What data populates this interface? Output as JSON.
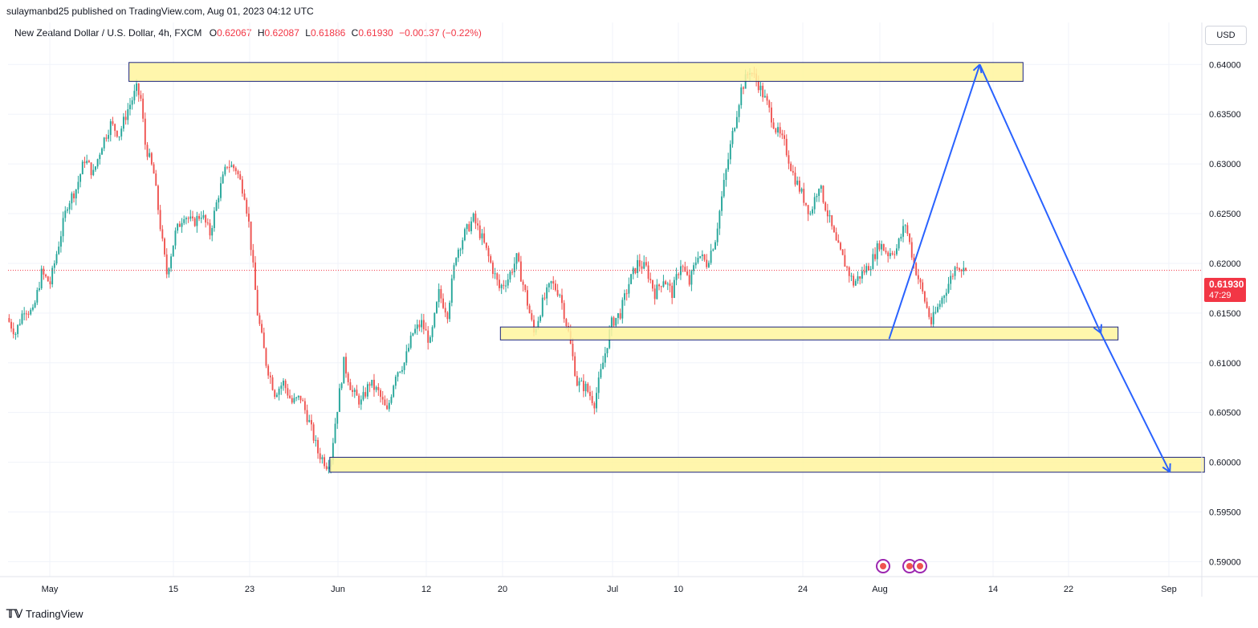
{
  "header": {
    "publisher": "sulaymanbd25 published on TradingView.com, Aug 01, 2023 04:12 UTC",
    "symbol": "New Zealand Dollar / U.S. Dollar, 4h, FXCM",
    "ohlc": {
      "o_label": "O",
      "o_value": "0.62067",
      "h_label": "H",
      "h_value": "0.62087",
      "l_label": "L",
      "l_value": "0.61886",
      "c_label": "C",
      "c_value": "0.61930",
      "change": "−0.00137 (−0.22%)"
    }
  },
  "currency_button": "USD",
  "price_badge": {
    "price": "0.61930",
    "countdown": "47:29"
  },
  "footer": {
    "brand": "TradingView"
  },
  "colors": {
    "up": "#26a69a",
    "down": "#ef5350",
    "zone_fill": "#fff59d",
    "zone_stroke": "#1a237e",
    "projection": "#2962ff",
    "last_price": "#f23645"
  },
  "chart_data": {
    "type": "candlestick",
    "timeframe": "4h",
    "y_ticks": [
      "0.64000",
      "0.63500",
      "0.63000",
      "0.62500",
      "0.62000",
      "0.61500",
      "0.61000",
      "0.60500",
      "0.60000",
      "0.59500",
      "0.59000"
    ],
    "ylim": [
      0.5885,
      0.6418
    ],
    "x_ticks": [
      "May",
      "15",
      "23",
      "Jun",
      "12",
      "20",
      "Jul",
      "10",
      "24",
      "Aug",
      "14",
      "22",
      "Sep"
    ],
    "last_price": 0.6193,
    "price_path": [
      [
        0,
        0.6145
      ],
      [
        4,
        0.613
      ],
      [
        8,
        0.6155
      ],
      [
        12,
        0.615
      ],
      [
        16,
        0.619
      ],
      [
        20,
        0.618
      ],
      [
        24,
        0.622
      ],
      [
        28,
        0.626
      ],
      [
        32,
        0.6275
      ],
      [
        36,
        0.6305
      ],
      [
        40,
        0.629
      ],
      [
        44,
        0.632
      ],
      [
        48,
        0.634
      ],
      [
        52,
        0.633
      ],
      [
        56,
        0.6355
      ],
      [
        60,
        0.6375
      ],
      [
        62,
        0.6365
      ],
      [
        64,
        0.632
      ],
      [
        68,
        0.629
      ],
      [
        72,
        0.622
      ],
      [
        74,
        0.619
      ],
      [
        78,
        0.623
      ],
      [
        82,
        0.625
      ],
      [
        86,
        0.624
      ],
      [
        90,
        0.625
      ],
      [
        94,
        0.623
      ],
      [
        98,
        0.627
      ],
      [
        102,
        0.63
      ],
      [
        106,
        0.6295
      ],
      [
        110,
        0.627
      ],
      [
        112,
        0.624
      ],
      [
        116,
        0.615
      ],
      [
        120,
        0.61
      ],
      [
        124,
        0.607
      ],
      [
        128,
        0.608
      ],
      [
        132,
        0.606
      ],
      [
        136,
        0.6065
      ],
      [
        140,
        0.604
      ],
      [
        144,
        0.601
      ],
      [
        148,
        0.5998
      ],
      [
        150,
        0.6005
      ],
      [
        152,
        0.604
      ],
      [
        156,
        0.61
      ],
      [
        160,
        0.607
      ],
      [
        164,
        0.606
      ],
      [
        168,
        0.608
      ],
      [
        172,
        0.607
      ],
      [
        176,
        0.605
      ],
      [
        180,
        0.609
      ],
      [
        184,
        0.61
      ],
      [
        188,
        0.613
      ],
      [
        192,
        0.614
      ],
      [
        196,
        0.612
      ],
      [
        200,
        0.617
      ],
      [
        204,
        0.615
      ],
      [
        208,
        0.621
      ],
      [
        212,
        0.623
      ],
      [
        216,
        0.6245
      ],
      [
        220,
        0.6225
      ],
      [
        224,
        0.62
      ],
      [
        228,
        0.6175
      ],
      [
        232,
        0.6185
      ],
      [
        236,
        0.6205
      ],
      [
        240,
        0.617
      ],
      [
        244,
        0.613
      ],
      [
        248,
        0.616
      ],
      [
        252,
        0.618
      ],
      [
        256,
        0.617
      ],
      [
        260,
        0.613
      ],
      [
        264,
        0.608
      ],
      [
        268,
        0.6075
      ],
      [
        272,
        0.606
      ],
      [
        276,
        0.61
      ],
      [
        280,
        0.614
      ],
      [
        284,
        0.615
      ],
      [
        288,
        0.618
      ],
      [
        292,
        0.62
      ],
      [
        296,
        0.6195
      ],
      [
        300,
        0.617
      ],
      [
        304,
        0.6185
      ],
      [
        308,
        0.617
      ],
      [
        312,
        0.62
      ],
      [
        316,
        0.618
      ],
      [
        320,
        0.621
      ],
      [
        324,
        0.62
      ],
      [
        328,
        0.6225
      ],
      [
        332,
        0.628
      ],
      [
        336,
        0.633
      ],
      [
        340,
        0.6375
      ],
      [
        344,
        0.6395
      ],
      [
        348,
        0.638
      ],
      [
        352,
        0.636
      ],
      [
        356,
        0.6335
      ],
      [
        360,
        0.632
      ],
      [
        364,
        0.629
      ],
      [
        368,
        0.627
      ],
      [
        372,
        0.625
      ],
      [
        376,
        0.628
      ],
      [
        380,
        0.625
      ],
      [
        384,
        0.622
      ],
      [
        388,
        0.62
      ],
      [
        392,
        0.618
      ],
      [
        396,
        0.619
      ],
      [
        400,
        0.62
      ],
      [
        404,
        0.622
      ],
      [
        408,
        0.621
      ],
      [
        412,
        0.6215
      ],
      [
        416,
        0.624
      ],
      [
        420,
        0.62
      ],
      [
        424,
        0.617
      ],
      [
        428,
        0.614
      ],
      [
        432,
        0.616
      ],
      [
        436,
        0.618
      ],
      [
        440,
        0.62
      ],
      [
        443,
        0.6193
      ]
    ],
    "zones": [
      {
        "from_bar": 56,
        "to_bar": 470,
        "low": 0.6383,
        "high": 0.6402
      },
      {
        "from_bar": 228,
        "to_bar": 514,
        "low": 0.6123,
        "high": 0.6136
      },
      {
        "from_bar": 149,
        "to_bar": 554,
        "low": 0.599,
        "high": 0.6005
      }
    ],
    "projection": [
      [
        408,
        0.6124
      ],
      [
        450,
        0.64
      ],
      [
        506,
        0.613
      ],
      [
        538,
        0.599
      ]
    ]
  }
}
